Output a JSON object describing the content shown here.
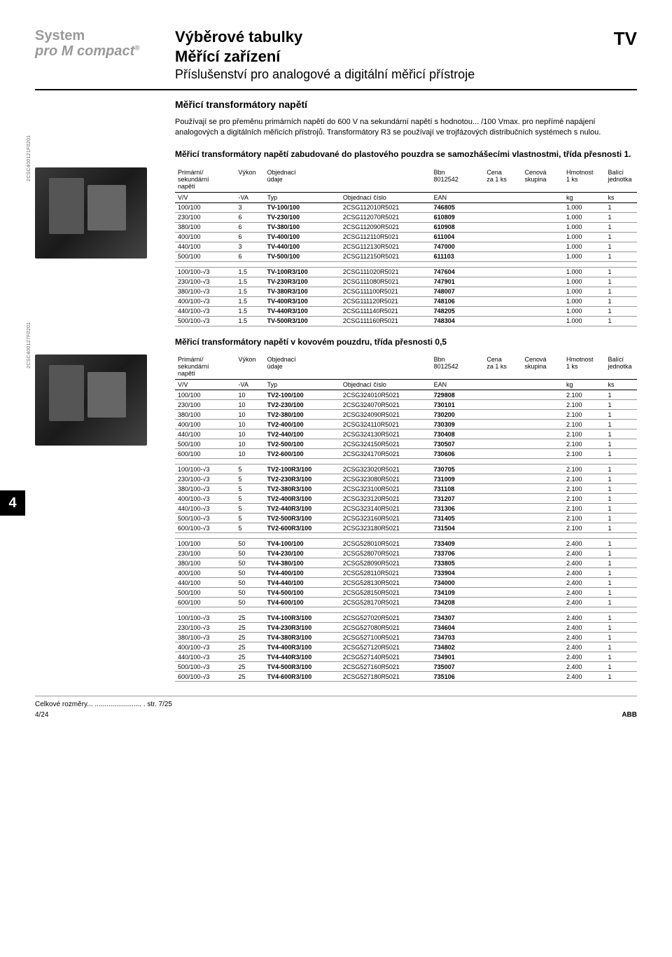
{
  "header": {
    "left_line1": "System",
    "left_line2a": "pro ",
    "left_line2b": "M",
    "left_line2c": " compact",
    "title1": "Výběrové tabulky",
    "title2": "Měřící zařízení",
    "title3": "Příslušenství pro analogové a digitální měřicí přístroje",
    "right": "TV"
  },
  "section1": {
    "title": "Měřicí transformátory  napětí",
    "desc": "Používají se pro přeměnu primárních napětí do 600 V na sekundární napětí s hodnotou... /100 Vmax. pro nepřímé napájení analogových a digitálních měřicích přístrojů. Transformátory R3 se používají ve trojfázových distribučních systémech s nulou."
  },
  "table1": {
    "title": "Měřicí transformátory napětí zabudované do plastového pouzdra se samozhášecími vlastnostmi, třída přesnosti 1.",
    "img_label": "2CSC400121F0201",
    "head": {
      "c1a": "Primární/",
      "c1b": "sekundární",
      "c1c": "napětí",
      "c2": "Výkon",
      "c3a": "Objednací",
      "c3b": "údaje",
      "c5a": "Bbn",
      "c5b": "8012542",
      "c6a": "Cena",
      "c6b": "za 1 ks",
      "c7a": "Cenová",
      "c7b": "skupina",
      "c8a": "Hmotnost",
      "c8b": "1 ks",
      "c9a": "Balící",
      "c9b": "jednotka"
    },
    "units": {
      "c1": "V/V",
      "c2": "-VA",
      "c3": "Typ",
      "c4": "Objednací číslo",
      "c5": "EAN",
      "c8": "kg",
      "c9": "ks"
    },
    "groups": [
      [
        [
          "100/100",
          "3",
          "TV-100/100",
          "2CSG112010R5021",
          "746805",
          "",
          "",
          "1.000",
          "1"
        ],
        [
          "230/100",
          "6",
          "TV-230/100",
          "2CSG112070R5021",
          "610809",
          "",
          "",
          "1.000",
          "1"
        ],
        [
          "380/100",
          "6",
          "TV-380/100",
          "2CSG112090R5021",
          "610908",
          "",
          "",
          "1.000",
          "1"
        ],
        [
          "400/100",
          "6",
          "TV-400/100",
          "2CSG112110R5021",
          "611004",
          "",
          "",
          "1.000",
          "1"
        ],
        [
          "440/100",
          "3",
          "TV-440/100",
          "2CSG112130R5021",
          "747000",
          "",
          "",
          "1.000",
          "1"
        ],
        [
          "500/100",
          "6",
          "TV-500/100",
          "2CSG112150R5021",
          "611103",
          "",
          "",
          "1.000",
          "1"
        ]
      ],
      [
        [
          "100/100-√3",
          "1.5",
          "TV-100R3/100",
          "2CSG111020R5021",
          "747604",
          "",
          "",
          "1.000",
          "1"
        ],
        [
          "230/100-√3",
          "1.5",
          "TV-230R3/100",
          "2CSG111080R5021",
          "747901",
          "",
          "",
          "1.000",
          "1"
        ],
        [
          "380/100-√3",
          "1.5",
          "TV-380R3/100",
          "2CSG111100R5021",
          "748007",
          "",
          "",
          "1.000",
          "1"
        ],
        [
          "400/100-√3",
          "1.5",
          "TV-400R3/100",
          "2CSG111120R5021",
          "748106",
          "",
          "",
          "1.000",
          "1"
        ],
        [
          "440/100-√3",
          "1.5",
          "TV-440R3/100",
          "2CSG111140R5021",
          "748205",
          "",
          "",
          "1.000",
          "1"
        ],
        [
          "500/100-√3",
          "1.5",
          "TV-500R3/100",
          "2CSG111160R5021",
          "748304",
          "",
          "",
          "1.000",
          "1"
        ]
      ]
    ]
  },
  "table2": {
    "title": "Měřicí transformátory napětí v kovovém pouzdru, třída přesnosti 0,5",
    "img_label": "2CSC400127F0201",
    "groups": [
      [
        [
          "100/100",
          "10",
          "TV2-100/100",
          "2CSG324010R5021",
          "729808",
          "",
          "",
          "2.100",
          "1"
        ],
        [
          "230/100",
          "10",
          "TV2-230/100",
          "2CSG324070R5021",
          "730101",
          "",
          "",
          "2.100",
          "1"
        ],
        [
          "380/100",
          "10",
          "TV2-380/100",
          "2CSG324090R5021",
          "730200",
          "",
          "",
          "2.100",
          "1"
        ],
        [
          "400/100",
          "10",
          "TV2-400/100",
          "2CSG324110R5021",
          "730309",
          "",
          "",
          "2.100",
          "1"
        ],
        [
          "440/100",
          "10",
          "TV2-440/100",
          "2CSG324130R5021",
          "730408",
          "",
          "",
          "2.100",
          "1"
        ],
        [
          "500/100",
          "10",
          "TV2-500/100",
          "2CSG324150R5021",
          "730507",
          "",
          "",
          "2.100",
          "1"
        ],
        [
          "600/100",
          "10",
          "TV2-600/100",
          "2CSG324170R5021",
          "730606",
          "",
          "",
          "2.100",
          "1"
        ]
      ],
      [
        [
          "100/100-√3",
          "5",
          "TV2-100R3/100",
          "2CSG323020R5021",
          "730705",
          "",
          "",
          "2.100",
          "1"
        ],
        [
          "230/100-√3",
          "5",
          "TV2-230R3/100",
          "2CSG323080R5021",
          "731009",
          "",
          "",
          "2.100",
          "1"
        ],
        [
          "380/100-√3",
          "5",
          "TV2-380R3/100",
          "2CSG323100R5021",
          "731108",
          "",
          "",
          "2.100",
          "1"
        ],
        [
          "400/100-√3",
          "5",
          "TV2-400R3/100",
          "2CSG323120R5021",
          "731207",
          "",
          "",
          "2.100",
          "1"
        ],
        [
          "440/100-√3",
          "5",
          "TV2-440R3/100",
          "2CSG323140R5021",
          "731306",
          "",
          "",
          "2.100",
          "1"
        ],
        [
          "500/100-√3",
          "5",
          "TV2-500R3/100",
          "2CSG323160R5021",
          "731405",
          "",
          "",
          "2.100",
          "1"
        ],
        [
          "600/100-√3",
          "5",
          "TV2-600R3/100",
          "2CSG323180R5021",
          "731504",
          "",
          "",
          "2.100",
          "1"
        ]
      ],
      [
        [
          "100/100",
          "50",
          "TV4-100/100",
          "2CSG528010R5021",
          "733409",
          "",
          "",
          "2.400",
          "1"
        ],
        [
          "230/100",
          "50",
          "TV4-230/100",
          "2CSG528070R5021",
          "733706",
          "",
          "",
          "2.400",
          "1"
        ],
        [
          "380/100",
          "50",
          "TV4-380/100",
          "2CSG528090R5021",
          "733805",
          "",
          "",
          "2.400",
          "1"
        ],
        [
          "400/100",
          "50",
          "TV4-400/100",
          "2CSG528110R5021",
          "733904",
          "",
          "",
          "2.400",
          "1"
        ],
        [
          "440/100",
          "50",
          "TV4-440/100",
          "2CSG528130R5021",
          "734000",
          "",
          "",
          "2.400",
          "1"
        ],
        [
          "500/100",
          "50",
          "TV4-500/100",
          "2CSG528150R5021",
          "734109",
          "",
          "",
          "2.400",
          "1"
        ],
        [
          "600/100",
          "50",
          "TV4-600/100",
          "2CSG528170R5021",
          "734208",
          "",
          "",
          "2.400",
          "1"
        ]
      ],
      [
        [
          "100/100-√3",
          "25",
          "TV4-100R3/100",
          "2CSG527020R5021",
          "734307",
          "",
          "",
          "2.400",
          "1"
        ],
        [
          "230/100-√3",
          "25",
          "TV4-230R3/100",
          "2CSG527080R5021",
          "734604",
          "",
          "",
          "2.400",
          "1"
        ],
        [
          "380/100-√3",
          "25",
          "TV4-380R3/100",
          "2CSG527100R5021",
          "734703",
          "",
          "",
          "2.400",
          "1"
        ],
        [
          "400/100-√3",
          "25",
          "TV4-400R3/100",
          "2CSG527120R5021",
          "734802",
          "",
          "",
          "2.400",
          "1"
        ],
        [
          "440/100-√3",
          "25",
          "TV4-440R3/100",
          "2CSG527140R5021",
          "734901",
          "",
          "",
          "2.400",
          "1"
        ],
        [
          "500/100-√3",
          "25",
          "TV4-500R3/100",
          "2CSG527160R5021",
          "735007",
          "",
          "",
          "2.400",
          "1"
        ],
        [
          "600/100-√3",
          "25",
          "TV4-600R3/100",
          "2CSG527180R5021",
          "735106",
          "",
          "",
          "2.400",
          "1"
        ]
      ]
    ]
  },
  "side_tab": "4",
  "footer": {
    "left": "Celkové rozměry... ........................ . str. 7/25",
    "page": "4/24",
    "abb": "ABB"
  }
}
